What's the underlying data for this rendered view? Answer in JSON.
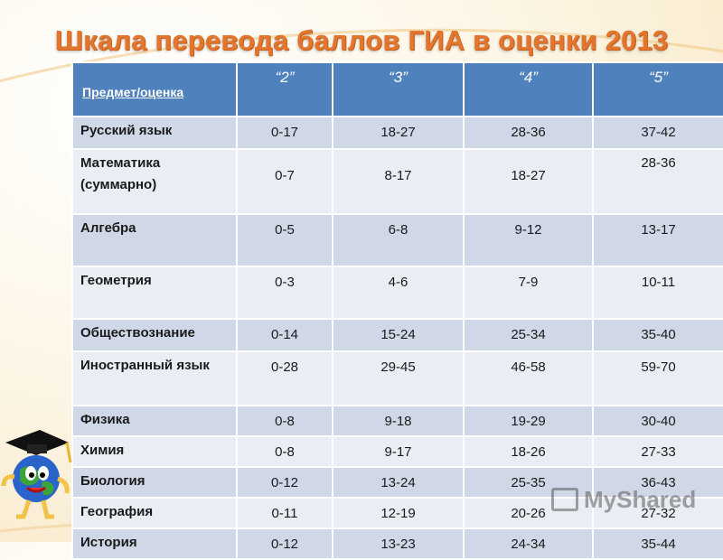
{
  "title": "Шкала перевода баллов ГИА в оценки 2013",
  "table": {
    "header": {
      "subject_label": "Предмет/оценка",
      "grades": [
        "“2”",
        "“3”",
        "“4”",
        "“5”"
      ]
    },
    "rows": [
      {
        "subject": "Русский язык",
        "scores": [
          "0-17",
          "18-27",
          "28-36",
          "37-42"
        ]
      },
      {
        "subject": "Математика (суммарно)",
        "scores": [
          "0-7",
          "8-17",
          "18-27",
          "28-36"
        ]
      },
      {
        "subject": "Алгебра",
        "scores": [
          "0-5",
          "6-8",
          "9-12",
          "13-17"
        ]
      },
      {
        "subject": "Геометрия",
        "scores": [
          "0-3",
          "4-6",
          "7-9",
          "10-11"
        ]
      },
      {
        "subject": "Обществознание",
        "scores": [
          "0-14",
          "15-24",
          "25-34",
          "35-40"
        ]
      },
      {
        "subject": "Иностранный язык",
        "scores": [
          "0-28",
          "29-45",
          "46-58",
          "59-70"
        ]
      },
      {
        "subject": "Физика",
        "scores": [
          "0-8",
          "9-18",
          "19-29",
          "30-40"
        ]
      },
      {
        "subject": "Химия",
        "scores": [
          "0-8",
          "9-17",
          "18-26",
          "27-33"
        ]
      },
      {
        "subject": "Биология",
        "scores": [
          "0-12",
          "13-24",
          "25-35",
          "36-43"
        ]
      },
      {
        "subject": "География",
        "scores": [
          "0-11",
          "12-19",
          "20-26",
          "27-32"
        ]
      },
      {
        "subject": "История",
        "scores": [
          "0-12",
          "13-23",
          "24-34",
          "35-44"
        ]
      }
    ]
  },
  "watermark": {
    "text": "MyShared",
    "icon": "presentation-board-icon"
  },
  "mascot": {
    "icon": "globe-graduate-mascot-icon"
  },
  "colors": {
    "title": "#e2762e",
    "header_bg": "#4f81bd",
    "row_dark": "#d0d8e8",
    "row_light": "#e9edf4"
  }
}
